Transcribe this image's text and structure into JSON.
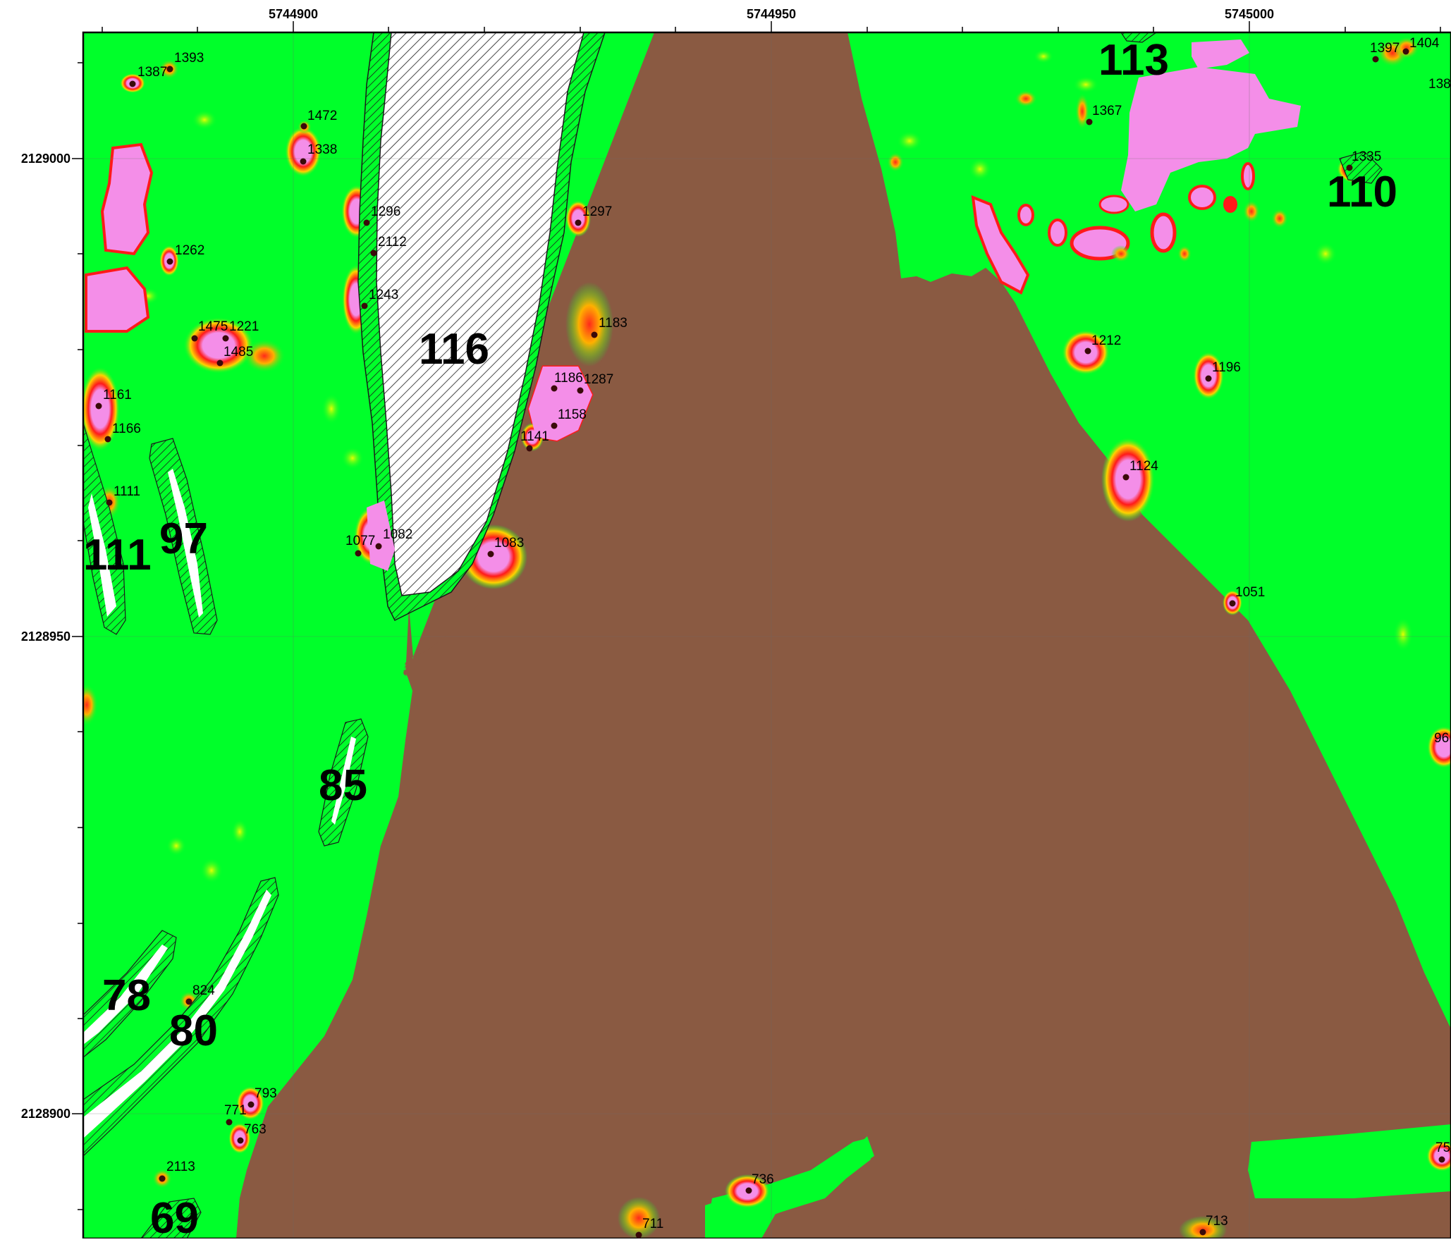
{
  "map": {
    "x_ticks": [
      "5744900",
      "5744950",
      "5745000"
    ],
    "y_ticks": [
      "2129000",
      "2128950",
      "2128900"
    ],
    "zones": [
      {
        "id": "116"
      },
      {
        "id": "113"
      },
      {
        "id": "110"
      },
      {
        "id": "111"
      },
      {
        "id": "97"
      },
      {
        "id": "85"
      },
      {
        "id": "78"
      },
      {
        "id": "80"
      },
      {
        "id": "69"
      }
    ],
    "points": [
      "1393",
      "1387",
      "1472",
      "1338",
      "1262",
      "1475",
      "1221",
      "1485",
      "1161",
      "1166",
      "1111",
      "1296",
      "2112",
      "1243",
      "1297",
      "1183",
      "1186",
      "1287",
      "1158",
      "1141",
      "1077",
      "1082",
      "1083",
      "1367",
      "1397",
      "1404",
      "138",
      "1335",
      "1212",
      "1196",
      "1124",
      "1051",
      "96",
      "824",
      "793",
      "771",
      "763",
      "2113",
      "736",
      "711",
      "713",
      "75"
    ],
    "colors": {
      "background": "#00ff2a",
      "channel": "#8a5a42",
      "anomaly_high": "#f48ee8",
      "anomaly_mid": "#ff1a1a",
      "anomaly_low": "#ffd200",
      "hatch": "#1a1a1a"
    }
  }
}
